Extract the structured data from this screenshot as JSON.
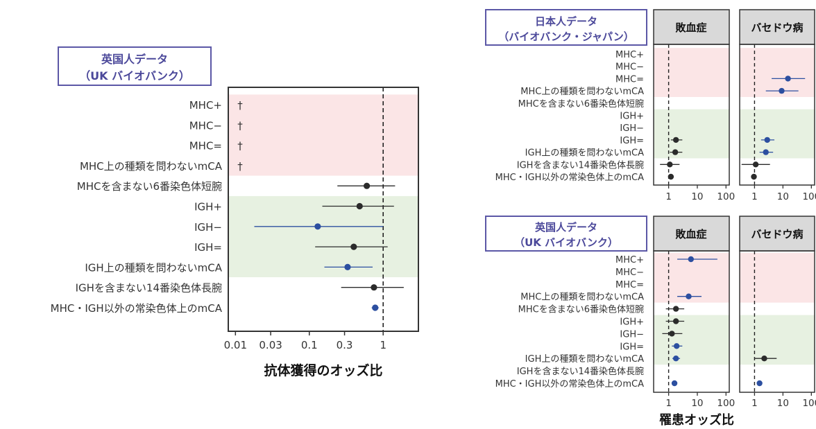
{
  "chart_data": [
    {
      "type": "forest",
      "group_box": {
        "line1": "英国人データ",
        "line2": "（UK バイオバンク）"
      },
      "xlabel": "抗体獲得のオッズ比",
      "scale": "log",
      "xlim": [
        0.008,
        3.0
      ],
      "ref_line": 1,
      "ticks": [
        {
          "v": 0.01,
          "label": "0.01"
        },
        {
          "v": 0.03,
          "label": "0.03"
        },
        {
          "v": 0.1,
          "label": "0.1"
        },
        {
          "v": 0.3,
          "label": "0.3"
        },
        {
          "v": 1,
          "label": "1"
        }
      ],
      "rows": [
        {
          "label": "MHC+",
          "mark": "†"
        },
        {
          "label": "MHC−",
          "mark": "†"
        },
        {
          "label": "MHC=",
          "mark": "†"
        },
        {
          "label": "MHC上の種類を問わないmCA",
          "mark": "†"
        },
        {
          "label": "MHCを含まない6番染色体短腕",
          "est": 0.6,
          "lo": 0.24,
          "hi": 1.45,
          "sig": false
        },
        {
          "label": "IGH+",
          "est": 0.48,
          "lo": 0.15,
          "hi": 1.4,
          "sig": false
        },
        {
          "label": "IGH−",
          "est": 0.13,
          "lo": 0.018,
          "hi": 1.0,
          "sig": true
        },
        {
          "label": "IGH=",
          "est": 0.4,
          "lo": 0.12,
          "hi": 1.15,
          "sig": false
        },
        {
          "label": "IGH上の種類を問わないmCA",
          "est": 0.33,
          "lo": 0.16,
          "hi": 0.72,
          "sig": true
        },
        {
          "label": "IGHを含まない14番染色体長腕",
          "est": 0.75,
          "lo": 0.27,
          "hi": 1.9,
          "sig": false
        },
        {
          "label": "MHC・IGH以外の常染色体上のmCA",
          "est": 0.78,
          "lo": 0.7,
          "hi": 0.87,
          "sig": true
        }
      ]
    },
    {
      "type": "forest",
      "group_box": {
        "line1": "日本人データ",
        "line2": "（バイオバンク・ジャパン）"
      },
      "scale": "log",
      "xlim": [
        0.3,
        130
      ],
      "ref_line": 1,
      "ticks": [
        {
          "v": 1,
          "label": "1"
        },
        {
          "v": 10,
          "label": "10"
        },
        {
          "v": 100,
          "label": "100"
        }
      ],
      "row_labels": [
        "MHC+",
        "MHC−",
        "MHC=",
        "MHC上の種類を問わないmCA",
        "MHCを含まない6番染色体短腕",
        "IGH+",
        "IGH−",
        "IGH=",
        "IGH上の種類を問わないmCA",
        "IGHを含まない14番染色体長腕",
        "MHC・IGH以外の常染色体上のmCA"
      ],
      "panels": [
        {
          "title": "敗血症",
          "points": [
            null,
            null,
            null,
            null,
            null,
            null,
            null,
            {
              "est": 1.8,
              "lo": 1.2,
              "hi": 3.0,
              "sig": false
            },
            {
              "est": 1.7,
              "lo": 1.1,
              "hi": 3.0,
              "sig": false
            },
            {
              "est": 1.1,
              "lo": 0.5,
              "hi": 2.4,
              "sig": false
            },
            {
              "est": 1.2,
              "lo": 1.0,
              "hi": 1.35,
              "sig": false
            }
          ]
        },
        {
          "title": "バセドウ病",
          "points": [
            null,
            null,
            {
              "est": 15,
              "lo": 4,
              "hi": 60,
              "sig": true
            },
            {
              "est": 9,
              "lo": 2.5,
              "hi": 35,
              "sig": true
            },
            null,
            null,
            null,
            {
              "est": 2.8,
              "lo": 1.7,
              "hi": 5.0,
              "sig": true
            },
            {
              "est": 2.5,
              "lo": 1.5,
              "hi": 4.5,
              "sig": true
            },
            {
              "est": 1.1,
              "lo": 0.35,
              "hi": 3.5,
              "sig": false
            },
            {
              "est": 0.95,
              "lo": 0.8,
              "hi": 1.1,
              "sig": false
            }
          ]
        }
      ]
    },
    {
      "type": "forest",
      "group_box": {
        "line1": "英国人データ",
        "line2": "（UK バイオバンク）"
      },
      "xlabel": "罹患オッズ比",
      "scale": "log",
      "xlim": [
        0.3,
        130
      ],
      "ref_line": 1,
      "ticks": [
        {
          "v": 1,
          "label": "1"
        },
        {
          "v": 10,
          "label": "10"
        },
        {
          "v": 100,
          "label": "100"
        }
      ],
      "row_labels": [
        "MHC+",
        "MHC−",
        "MHC=",
        "MHC上の種類を問わないmCA",
        "MHCを含まない6番染色体短腕",
        "IGH+",
        "IGH−",
        "IGH=",
        "IGH上の種類を問わないmCA",
        "IGHを含まない14番染色体長腕",
        "MHC・IGH以外の常染色体上のmCA"
      ],
      "panels": [
        {
          "title": "敗血症",
          "points": [
            {
              "est": 6,
              "lo": 2,
              "hi": 50,
              "sig": true
            },
            null,
            null,
            {
              "est": 5,
              "lo": 2,
              "hi": 14,
              "sig": true
            },
            {
              "est": 1.8,
              "lo": 0.8,
              "hi": 3.5,
              "sig": false
            },
            {
              "est": 1.8,
              "lo": 0.8,
              "hi": 3.5,
              "sig": false
            },
            {
              "est": 1.3,
              "lo": 0.6,
              "hi": 3.0,
              "sig": false
            },
            {
              "est": 1.9,
              "lo": 1.3,
              "hi": 3.0,
              "sig": true
            },
            {
              "est": 1.8,
              "lo": 1.35,
              "hi": 2.5,
              "sig": true
            },
            null,
            {
              "est": 1.6,
              "lo": 1.45,
              "hi": 1.75,
              "sig": true
            }
          ]
        },
        {
          "title": "バセドウ病",
          "points": [
            null,
            null,
            null,
            null,
            null,
            null,
            null,
            null,
            {
              "est": 2.2,
              "lo": 1.0,
              "hi": 6.0,
              "sig": false
            },
            null,
            {
              "est": 1.5,
              "lo": 1.3,
              "hi": 1.7,
              "sig": true
            }
          ]
        }
      ]
    }
  ]
}
